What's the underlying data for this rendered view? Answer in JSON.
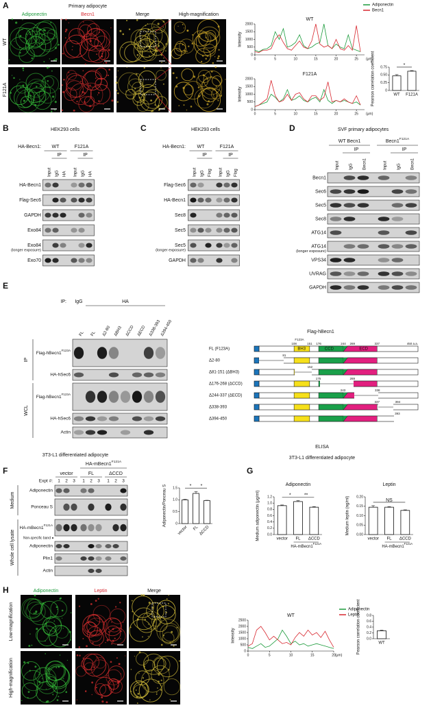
{
  "panel_a": {
    "letter": "A",
    "title": "Primary adipocyte",
    "channels": [
      "Adiponectin",
      "Becn1",
      "Merge",
      "High-magnification"
    ],
    "rows": [
      "WT",
      "F121A"
    ],
    "profiles": [
      {
        "type": "line",
        "title": "WT",
        "y_label": "Intensity",
        "x_unit": "(μm)",
        "xlim": [
          0,
          27
        ],
        "xticks": [
          0,
          5,
          10,
          15,
          20,
          25
        ],
        "ylim": [
          0,
          2000
        ],
        "yticks": [
          0,
          500,
          1000,
          1500,
          2000
        ],
        "x": [
          0,
          1,
          2,
          3,
          4,
          5,
          6,
          7,
          8,
          9,
          10,
          11,
          12,
          13,
          14,
          15,
          16,
          17,
          18,
          19,
          20,
          21,
          22,
          23,
          24,
          25,
          26
        ],
        "series": [
          {
            "name": "Adiponectin",
            "color": "#1a9a3a",
            "values": [
              300,
              200,
              350,
              400,
              600,
              1500,
              1000,
              1700,
              500,
              600,
              800,
              1300,
              600,
              400,
              500,
              700,
              800,
              2000,
              600,
              400,
              700,
              500,
              400,
              1300,
              400,
              300,
              200
            ]
          },
          {
            "name": "Becn1",
            "color": "#d8262e",
            "values": [
              200,
              150,
              300,
              300,
              400,
              1000,
              1300,
              800,
              400,
              300,
              600,
              900,
              500,
              400,
              900,
              2000,
              700,
              500,
              600,
              400,
              1000,
              400,
              300,
              600,
              300,
              1900,
              200
            ]
          }
        ]
      },
      {
        "type": "line",
        "title": "F121A",
        "y_label": "Intensity",
        "x_unit": "(μm)",
        "xlim": [
          0,
          27
        ],
        "xticks": [
          0,
          5,
          10,
          15,
          20,
          25
        ],
        "ylim": [
          0,
          2000
        ],
        "yticks": [
          0,
          500,
          1000,
          1500,
          2000
        ],
        "x": [
          0,
          1,
          2,
          3,
          4,
          5,
          6,
          7,
          8,
          9,
          10,
          11,
          12,
          13,
          14,
          15,
          16,
          17,
          18,
          19,
          20,
          21,
          22,
          23,
          24,
          25,
          26
        ],
        "series": [
          {
            "color": "#1a9a3a",
            "values": [
              200,
              300,
              400,
              500,
              1000,
              800,
              500,
              700,
              1300,
              600,
              700,
              900,
              600,
              500,
              700,
              800,
              500,
              1300,
              600,
              400,
              600,
              500,
              600,
              500,
              400,
              500,
              300
            ]
          },
          {
            "color": "#d8262e",
            "values": [
              200,
              300,
              500,
              700,
              1900,
              900,
              500,
              600,
              1000,
              600,
              1000,
              1100,
              700,
              500,
              900,
              900,
              600,
              800,
              1800,
              500,
              600,
              500,
              700,
              500,
              400,
              900,
              300
            ]
          }
        ]
      }
    ],
    "pearson": {
      "type": "bar",
      "y_label": "Pearson correlation coefficient",
      "categories": [
        "WT",
        "F121A"
      ],
      "values": [
        0.47,
        0.62
      ],
      "errors": [
        0.04,
        0.02
      ],
      "ylim": [
        0,
        0.75
      ],
      "yticks": [
        0,
        0.25,
        {
          "value": 0.5,
          "label": "0.50"
        },
        0.75
      ],
      "significance": [
        "*"
      ]
    }
  },
  "panel_b": {
    "letter": "B",
    "title": "HEK293 cells",
    "construct_label": "HA-Becn1:",
    "groups": [
      "WT",
      "F121A"
    ],
    "ip_labels": [
      "IP",
      "IP"
    ],
    "lanes": [
      "Input",
      "IgG",
      "HA",
      "Input",
      "IgG",
      "HA"
    ],
    "rows": [
      {
        "label": "HA-Becn1"
      },
      {
        "label": "Flag-Sec6"
      },
      {
        "label": "GAPDH"
      },
      {
        "label": "Exo84"
      },
      {
        "label": "Exo84",
        "note": "(longer exposure)"
      },
      {
        "label": "Exo70"
      }
    ]
  },
  "panel_c": {
    "letter": "C",
    "title": "HEK293 cells",
    "construct_label": "HA-Becn1:",
    "groups": [
      "WT",
      "F121A"
    ],
    "ip_labels": [
      "IP",
      "IP"
    ],
    "lanes": [
      "Input",
      "IgG",
      "Flag",
      "Input",
      "IgG",
      "Flag"
    ],
    "rows": [
      {
        "label": "Flag-Sec6"
      },
      {
        "label": "HA-Becn1"
      },
      {
        "label": "Sec8"
      },
      {
        "label": "Sec5"
      },
      {
        "label": "Sec5",
        "note": "(longer exposure)"
      },
      {
        "label": "GAPDH"
      }
    ]
  },
  "panel_d": {
    "letter": "D",
    "title": "SVF primary adipocytes",
    "groups": [
      {
        "label": "WT Becn1"
      },
      {
        "label": "Becn1",
        "sup": "F121A"
      }
    ],
    "ip_labels": [
      "IP",
      "IP"
    ],
    "lanes": [
      "Input",
      "IgG",
      "Becn1",
      "Input",
      "IgG",
      "Becn1"
    ],
    "rows": [
      {
        "label": "Becn1"
      },
      {
        "label": "Sec6"
      },
      {
        "label": "Sec5"
      },
      {
        "label": "Sec8"
      },
      {
        "label": "ATG14"
      },
      {
        "label": "ATG14",
        "note": "(longer exposure)"
      },
      {
        "label": "VPS34"
      },
      {
        "label": "UVRAG"
      },
      {
        "label": "GAPDH"
      }
    ]
  },
  "panel_e": {
    "letter": "E",
    "ip_prefix": "IP:",
    "ip_groups": [
      "IgG",
      "HA"
    ],
    "lanes": [
      "FL",
      "FL",
      "Δ2-80",
      "ΔBH3",
      "ΔCCD",
      "ΔECD",
      "Δ338-393",
      "Δ394-450"
    ],
    "sections": [
      "IP",
      "WCL"
    ],
    "rows": [
      {
        "label": "Flag-hBecn1",
        "sup": "F123A"
      },
      {
        "label": "HA-hSec6"
      },
      {
        "label": "Flag-hBecn1",
        "sup": "F123A"
      },
      {
        "label": "HA-hSec6"
      },
      {
        "label": "Actin"
      }
    ],
    "diagram": {
      "title": "Flag-hBecn1",
      "domains": [
        "BH3",
        "CCD",
        "ECD"
      ],
      "mutation": "F123A",
      "length_label": "450 a.a.",
      "fl_marks": [
        108,
        151,
        176,
        244,
        269,
        337
      ],
      "constructs": [
        {
          "label": "FL (F123A)"
        },
        {
          "label": "Δ2-80",
          "marks": [
            81
          ]
        },
        {
          "label": "Δ81-151 (ΔBH3)",
          "marks": [
            152
          ]
        },
        {
          "label": "Δ176-268 (ΔCCD)",
          "marks": [
            175,
            269
          ]
        },
        {
          "label": "Δ244-337 (ΔECD)",
          "marks": [
            243,
            338
          ]
        },
        {
          "label": "Δ338-393",
          "marks": [
            337,
            394
          ]
        },
        {
          "label": "Δ394-450",
          "marks": [
            393
          ]
        }
      ]
    }
  },
  "panel_f": {
    "letter": "F",
    "title": "3T3-L1 differentiated adipocyte",
    "construct": {
      "label": "HA-mBecn1",
      "sup": "F121A"
    },
    "groups": [
      "vector",
      "FL",
      "ΔCCD"
    ],
    "expt_label": "Expt #:",
    "expts": [
      1,
      2,
      3,
      1,
      2,
      3,
      1,
      2,
      3
    ],
    "sections": [
      "Medium",
      "Whole cell lysate"
    ],
    "rows": [
      {
        "label": "Adiponectin"
      },
      {
        "label": "Ponceau S"
      },
      {
        "label": "HA-mBecn1",
        "sup": "F121A"
      },
      {
        "label": "Adiponectin"
      },
      {
        "label": "Plin1"
      },
      {
        "label": "Actin"
      }
    ],
    "nonspecific_label": "Non-specific band",
    "chart": {
      "type": "bar",
      "y_label": "Adiponectin/Ponceau S",
      "categories": [
        "vector",
        "FL",
        "ΔCCD"
      ],
      "values": [
        1.0,
        1.27,
        0.97
      ],
      "errors": [
        0.02,
        0.08,
        0.01
      ],
      "ylim": [
        0,
        1.5
      ],
      "yticks": [
        0,
        0.5,
        {
          "value": 1,
          "label": "1.0"
        },
        1.5
      ],
      "significance": [
        "*",
        "*"
      ]
    }
  },
  "panel_g": {
    "letter": "G",
    "title": "ELISA",
    "subtitle": "3T3-L1 differentiated adipocyte",
    "charts": [
      {
        "type": "bar",
        "title": "Adiponectin",
        "y_label": "Medium adiponectin (μg/ml)",
        "categories": [
          "vector",
          "FL",
          "ΔCCD"
        ],
        "group_label": {
          "label": "HA-mBecn1",
          "sup": "F121A"
        },
        "values": [
          0.92,
          1.05,
          0.87
        ],
        "errors": [
          0.02,
          0.03,
          0.02
        ],
        "ylim": [
          0,
          1.2
        ],
        "yticks": [
          {
            "value": 0,
            "label": "0.0"
          },
          0.2,
          0.4,
          0.6,
          0.8,
          {
            "value": 1,
            "label": "1.0"
          },
          1.2
        ],
        "significance": [
          "*",
          "**"
        ]
      },
      {
        "type": "bar",
        "title": "Leptin",
        "y_label": "Medium leptin (ng/ml)",
        "categories": [
          "vector",
          "FL",
          "ΔCCD"
        ],
        "group_label": {
          "label": "HA-mBecn1",
          "sup": "F121A"
        },
        "values": [
          0.145,
          0.145,
          0.128
        ],
        "errors": [
          0.008,
          0.003,
          0.003
        ],
        "ylim": [
          0,
          0.2
        ],
        "yticks": [
          {
            "value": 0,
            "label": "0.00"
          },
          0.05,
          {
            "value": 0.1,
            "label": "0.10"
          },
          0.15,
          {
            "value": 0.2,
            "label": "0.20"
          }
        ],
        "significance": [
          "NS"
        ]
      }
    ]
  },
  "panel_h": {
    "letter": "H",
    "channels": [
      "Adiponectin",
      "Leptin",
      "Merge"
    ],
    "rows": [
      "Low-magnification",
      "High-magnification"
    ],
    "profile": {
      "type": "line",
      "title": "WT",
      "y_label": "Intensity",
      "x_unit": "(μm)",
      "xlim": [
        0,
        20
      ],
      "xticks": [
        0,
        5,
        10,
        15,
        20
      ],
      "ylim": [
        0,
        2500
      ],
      "yticks": [
        0,
        500,
        1000,
        1500,
        2000,
        2500
      ],
      "x": [
        0,
        1,
        2,
        3,
        4,
        5,
        6,
        7,
        8,
        9,
        10,
        11,
        12,
        13,
        14,
        15,
        16,
        17,
        18,
        19,
        20
      ],
      "series": [
        {
          "name": "Adiponectin",
          "color": "#1a9a3a",
          "values": [
            300,
            200,
            400,
            600,
            300,
            400,
            700,
            1000,
            1700,
            1200,
            600,
            800,
            500,
            600,
            400,
            500,
            600,
            500,
            400,
            300,
            200
          ]
        },
        {
          "name": "Leptin",
          "color": "#d8262e",
          "values": [
            400,
            600,
            1700,
            2000,
            1500,
            900,
            1200,
            900,
            600,
            700,
            500,
            1100,
            1500,
            1200,
            1700,
            1300,
            1500,
            1100,
            1600,
            900,
            300
          ]
        }
      ]
    },
    "pearson": {
      "type": "bar",
      "y_label": "Pearson correlation coefficient",
      "categories": [
        "WT"
      ],
      "values": [
        0.27
      ],
      "errors": [
        0.02
      ],
      "ylim": [
        0,
        0.8
      ],
      "yticks": [
        {
          "value": 0,
          "label": "0.0"
        },
        0.2,
        0.4,
        0.6,
        0.8
      ]
    }
  }
}
